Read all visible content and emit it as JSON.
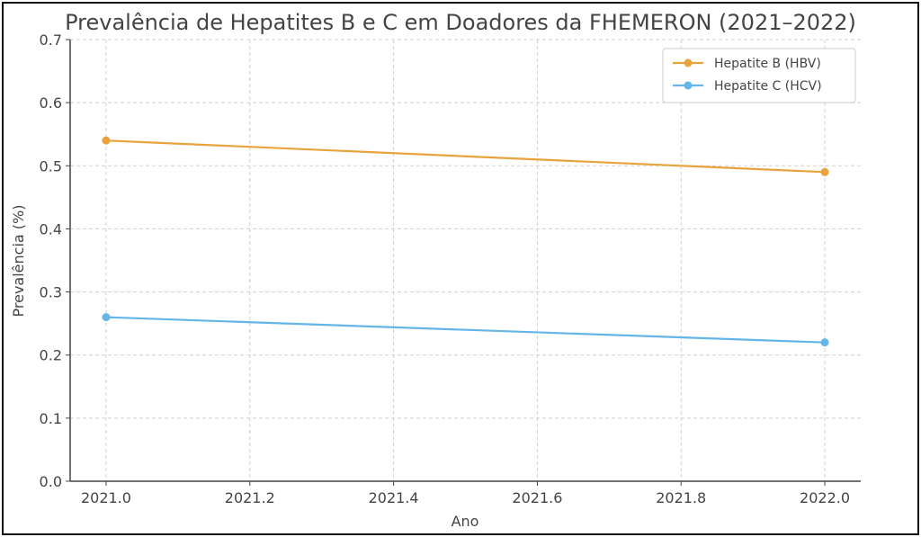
{
  "chart_data": {
    "type": "line",
    "title": "Prevalência de Hepatites B e C em Doadores da FHEMERON (2021–2022)",
    "xlabel": "Ano",
    "ylabel": "Prevalência (%)",
    "x": [
      2021,
      2022
    ],
    "xlim": [
      2020.95,
      2022.05
    ],
    "ylim": [
      0,
      0.7
    ],
    "xticks": [
      "2021.0",
      "2021.2",
      "2021.4",
      "2021.6",
      "2021.8",
      "2022.0"
    ],
    "xtick_values": [
      2021.0,
      2021.2,
      2021.4,
      2021.6,
      2021.8,
      2022.0
    ],
    "yticks": [
      "0.0",
      "0.1",
      "0.2",
      "0.3",
      "0.4",
      "0.5",
      "0.6",
      "0.7"
    ],
    "ytick_values": [
      0,
      0.1,
      0.2,
      0.3,
      0.4,
      0.5,
      0.6,
      0.7
    ],
    "grid": true,
    "legend_position": "top-right",
    "series": [
      {
        "name": "Hepatite B (HBV)",
        "values": [
          0.54,
          0.49
        ],
        "color": "#E8A33D"
      },
      {
        "name": "Hepatite C (HCV)",
        "values": [
          0.26,
          0.22
        ],
        "color": "#64B5E8"
      }
    ]
  }
}
